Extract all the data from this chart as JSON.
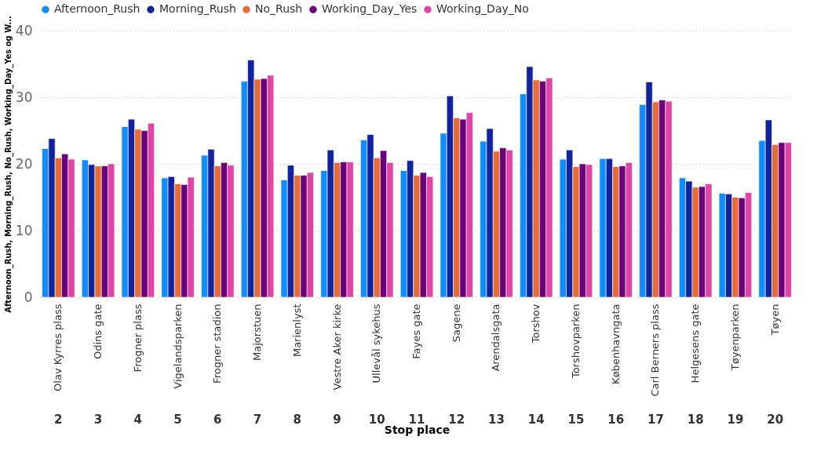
{
  "chart_data": {
    "type": "bar",
    "xlabel": "Stop place",
    "ylabel": "Afternoon_Rush, Morning_Rush, No_Rush, Working_Day_Yes og W...",
    "categories": [
      "Olav Kyrres plass",
      "Odins gate",
      "Frogner plass",
      "Vigelandsparken",
      "Frogner stadion",
      "Majorstuen",
      "Marienlyst",
      "Vestre Aker kirke",
      "Ullevål sykehus",
      "Fayes gate",
      "Sagene",
      "Arendalsgata",
      "Torshov",
      "Torshovparken",
      "Københavngata",
      "Carl Berners plass",
      "Helgesens gate",
      "Tøyenparken",
      "Tøyen"
    ],
    "series": [
      {
        "name": "Afternoon_Rush",
        "color": "#118dff",
        "values": [
          22.3,
          20.6,
          25.6,
          17.9,
          21.3,
          32.4,
          17.6,
          19.0,
          23.6,
          19.0,
          24.6,
          23.4,
          30.5,
          20.7,
          20.8,
          28.9,
          17.9,
          15.6,
          23.5
        ]
      },
      {
        "name": "Morning_Rush",
        "color": "#12239e",
        "values": [
          23.8,
          19.9,
          26.7,
          18.1,
          22.2,
          35.6,
          19.8,
          22.1,
          24.4,
          20.5,
          30.2,
          25.3,
          34.6,
          22.1,
          20.8,
          32.3,
          17.4,
          15.5,
          26.6
        ]
      },
      {
        "name": "No_Rush",
        "color": "#e66c37",
        "values": [
          20.9,
          19.7,
          25.2,
          17.0,
          19.7,
          32.7,
          18.3,
          20.2,
          20.9,
          18.3,
          26.9,
          21.9,
          32.6,
          19.6,
          19.6,
          29.3,
          16.5,
          15.0,
          22.9
        ]
      },
      {
        "name": "Working_Day_Yes",
        "color": "#6b007b",
        "values": [
          21.5,
          19.7,
          25.0,
          16.9,
          20.2,
          32.8,
          18.3,
          20.3,
          22.0,
          18.7,
          26.7,
          22.4,
          32.4,
          20.0,
          19.7,
          29.6,
          16.6,
          14.9,
          23.2
        ]
      },
      {
        "name": "Working_Day_No",
        "color": "#e044a7",
        "values": [
          20.7,
          20.0,
          26.1,
          18.0,
          19.8,
          33.3,
          18.7,
          20.3,
          20.2,
          18.1,
          27.7,
          22.1,
          32.9,
          19.9,
          20.2,
          29.4,
          17.0,
          15.7,
          23.2
        ]
      }
    ],
    "ylim": [
      0,
      40
    ],
    "yticks": [
      0,
      10,
      20,
      30,
      40
    ],
    "grid": "y",
    "legend": "top",
    "annotations": [
      "2",
      "3",
      "4",
      "5",
      "6",
      "7",
      "8",
      "9",
      "10",
      "11",
      "12",
      "13",
      "14",
      "15",
      "16",
      "17",
      "18",
      "19",
      "20"
    ]
  }
}
